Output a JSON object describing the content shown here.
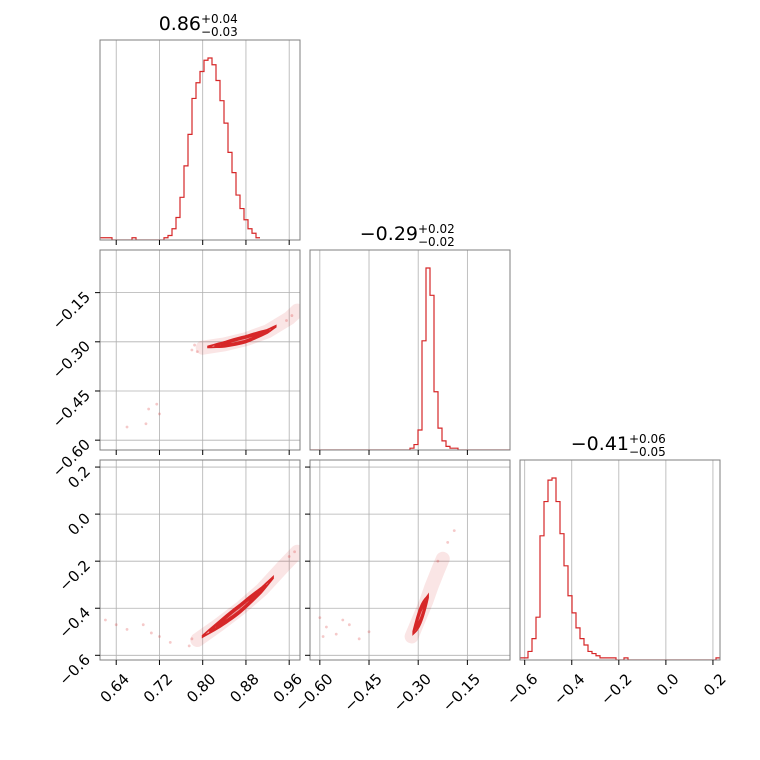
{
  "chart_data": {
    "type": "corner",
    "color": "#d62728",
    "parameters": [
      {
        "title": {
          "median": "0.86",
          "plus": "+0.04",
          "minus": "−0.03"
        },
        "range": [
          0.61,
          0.98
        ],
        "ticks": [
          0.64,
          0.72,
          0.8,
          0.88,
          0.96
        ],
        "tick_labels": [
          "0.64",
          "0.72",
          "0.80",
          "0.88",
          "0.96"
        ],
        "hist": {
          "edges_start": 0.61,
          "bin_width": 0.0074,
          "counts": [
            1,
            1,
            1,
            0,
            0,
            0,
            0,
            0,
            1,
            0,
            0,
            0,
            0,
            0,
            0,
            0,
            1,
            2,
            5,
            10,
            19,
            33,
            47,
            63,
            70,
            75,
            80,
            81,
            78,
            71,
            62,
            52,
            39,
            30,
            20,
            14,
            9,
            5,
            3,
            1
          ]
        }
      },
      {
        "title": {
          "median": "−0.29",
          "plus": "+0.02",
          "minus": "−0.02"
        },
        "range": [
          -0.63,
          -0.02
        ],
        "ticks": [
          -0.6,
          -0.45,
          -0.3,
          -0.15
        ],
        "tick_labels": [
          "−0.60",
          "−0.45",
          "−0.30",
          "−0.15"
        ],
        "hist": {
          "edges_start": -0.63,
          "bin_width": 0.0122,
          "counts": [
            0,
            0,
            0,
            0,
            0,
            0,
            0,
            0,
            0,
            0,
            0,
            0,
            0,
            0,
            0,
            0,
            0,
            0,
            0,
            0,
            0,
            0,
            0,
            0,
            0,
            1,
            3,
            11,
            60,
            100,
            85,
            32,
            12,
            5,
            2,
            1,
            1,
            0,
            0,
            0,
            0,
            0,
            0,
            0,
            0,
            0,
            0,
            0,
            0,
            0
          ]
        }
      },
      {
        "title": {
          "median": "−0.41",
          "plus": "+0.06",
          "minus": "−0.05"
        },
        "range": [
          -0.62,
          0.23
        ],
        "ticks": [
          -0.6,
          -0.4,
          -0.2,
          0.0,
          0.2
        ],
        "tick_labels": [
          "−0.6",
          "−0.4",
          "−0.2",
          "0.0",
          "0.2"
        ],
        "hist": {
          "edges_start": -0.62,
          "bin_width": 0.017,
          "counts": [
            1,
            1,
            4,
            10,
            20,
            58,
            74,
            84,
            85,
            74,
            59,
            44,
            30,
            22,
            15,
            10,
            7,
            4,
            3,
            2,
            1,
            1,
            1,
            1,
            0,
            0,
            1,
            0,
            0,
            0,
            0,
            0,
            0,
            0,
            0,
            0,
            0,
            0,
            0,
            0,
            0,
            0,
            0,
            0,
            0,
            0,
            0,
            0,
            0,
            1
          ]
        }
      }
    ],
    "pairs": [
      {
        "x_param": 0,
        "y_param": 1,
        "trend": {
          "x": [
            0.8,
            0.84,
            0.88,
            0.92,
            0.96,
            0.975
          ],
          "y": [
            -0.318,
            -0.308,
            -0.292,
            -0.268,
            -0.228,
            -0.205
          ]
        },
        "core": {
          "x0": 0.81,
          "x1": 0.935,
          "width": 0.01
        },
        "scatter": [
          [
            0.7,
            -0.505
          ],
          [
            0.715,
            -0.49
          ],
          [
            0.72,
            -0.52
          ],
          [
            0.66,
            -0.56
          ],
          [
            0.695,
            -0.55
          ],
          [
            0.785,
            -0.31
          ],
          [
            0.78,
            -0.325
          ],
          [
            0.79,
            -0.33
          ],
          [
            0.955,
            -0.235
          ],
          [
            0.965,
            -0.22
          ]
        ]
      },
      {
        "x_param": 0,
        "y_param": 2,
        "trend": {
          "x": [
            0.79,
            0.83,
            0.87,
            0.91,
            0.95,
            0.975
          ],
          "y": [
            -0.535,
            -0.47,
            -0.4,
            -0.32,
            -0.22,
            -0.16
          ]
        },
        "core": {
          "x0": 0.8,
          "x1": 0.93,
          "width": 0.018
        },
        "scatter": [
          [
            0.64,
            -0.47
          ],
          [
            0.66,
            -0.49
          ],
          [
            0.69,
            -0.47
          ],
          [
            0.72,
            -0.52
          ],
          [
            0.705,
            -0.505
          ],
          [
            0.62,
            -0.45
          ],
          [
            0.74,
            -0.545
          ],
          [
            0.775,
            -0.56
          ],
          [
            0.78,
            -0.53
          ],
          [
            0.96,
            -0.18
          ],
          [
            0.97,
            -0.16
          ]
        ]
      },
      {
        "x_param": 1,
        "y_param": 2,
        "trend": {
          "x": [
            -0.32,
            -0.305,
            -0.29,
            -0.275,
            -0.26,
            -0.24,
            -0.225
          ],
          "y": [
            -0.52,
            -0.47,
            -0.42,
            -0.37,
            -0.31,
            -0.24,
            -0.19
          ]
        },
        "core": {
          "x0": -0.315,
          "x1": -0.27,
          "width": 0.035
        },
        "scatter": [
          [
            -0.6,
            -0.44
          ],
          [
            -0.58,
            -0.48
          ],
          [
            -0.55,
            -0.51
          ],
          [
            -0.51,
            -0.47
          ],
          [
            -0.48,
            -0.53
          ],
          [
            -0.45,
            -0.5
          ],
          [
            -0.59,
            -0.52
          ],
          [
            -0.53,
            -0.45
          ],
          [
            -0.21,
            -0.12
          ],
          [
            -0.19,
            -0.07
          ],
          [
            -0.24,
            -0.2
          ]
        ]
      }
    ]
  }
}
